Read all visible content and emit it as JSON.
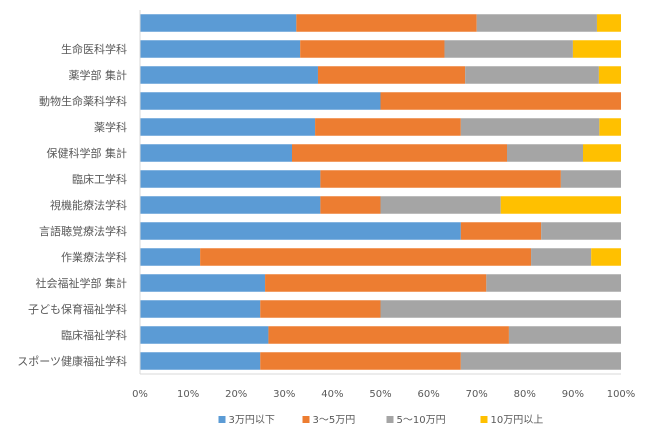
{
  "chart_data": {
    "type": "bar",
    "orientation": "horizontal",
    "stacked": "percent",
    "categories": [
      "",
      "生命医科学科",
      "薬学部 集計",
      "動物生命薬科学科",
      "薬学科",
      "保健科学部 集計",
      "臨床工学科",
      "視機能療法学科",
      "言語聴覚療法学科",
      "作業療法学科",
      "社会福祉学部 集計",
      "子ども保育福祉学科",
      "臨床福祉学科",
      "スポーツ健康福祉学科"
    ],
    "series": [
      {
        "name": "3万円以下",
        "color": "#5B9BD5",
        "values": [
          32.5,
          33.3,
          37,
          50,
          36.4,
          31.6,
          37.5,
          37.5,
          66.7,
          12.5,
          26,
          25,
          26.7,
          25
        ]
      },
      {
        "name": "3～5万円",
        "color": "#ED7D31",
        "values": [
          37.5,
          30,
          30.6,
          50,
          30.3,
          44.7,
          50,
          12.5,
          16.7,
          68.8,
          46,
          25,
          50,
          41.7
        ]
      },
      {
        "name": "5～10万円",
        "color": "#A5A5A5",
        "values": [
          25,
          26.7,
          27.8,
          0,
          28.8,
          15.8,
          12.5,
          25,
          16.6,
          12.5,
          28,
          50,
          23.3,
          33.3
        ]
      },
      {
        "name": "10万円以上",
        "color": "#FFC000",
        "values": [
          5,
          10,
          4.6,
          0,
          4.5,
          7.9,
          0,
          25,
          0,
          6.2,
          0,
          0,
          0,
          0
        ]
      }
    ],
    "xlim": [
      0,
      100
    ],
    "xticks": [
      "0%",
      "10%",
      "20%",
      "30%",
      "40%",
      "50%",
      "60%",
      "70%",
      "80%",
      "90%",
      "100%"
    ],
    "legend_position": "bottom",
    "grid": false
  }
}
